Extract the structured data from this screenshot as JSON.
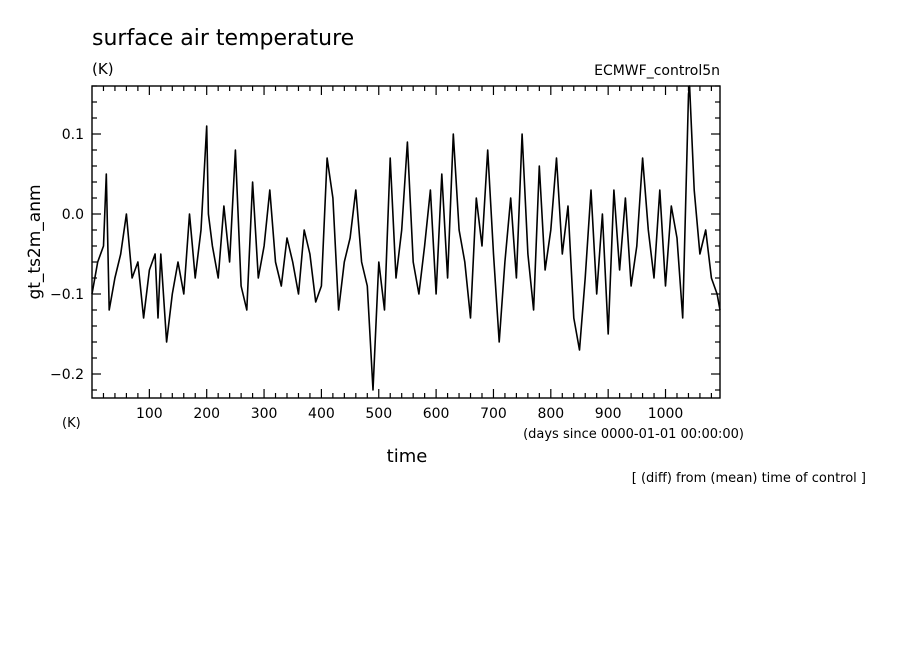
{
  "page": {
    "title": "surface air temperature",
    "title_unit": "(K)",
    "experiment": "ECMWF_control5n",
    "footnote": "[ (diff) from (mean) time of control ]"
  },
  "chart_data": {
    "type": "line",
    "title": "surface air temperature",
    "ylabel": "gt_ts2m_anm",
    "yunit": "(K)",
    "xlabel": "time",
    "xunit": "(days since 0000-01-01 00:00:00)",
    "xlim": [
      0,
      1095
    ],
    "ylim": [
      -0.23,
      0.16
    ],
    "xticks": [
      100,
      200,
      300,
      400,
      500,
      600,
      700,
      800,
      900,
      1000
    ],
    "yticks": [
      -0.2,
      -0.1,
      0.0,
      0.1
    ],
    "ytick_labels": [
      "−0.2",
      "−0.1",
      "0.0",
      "0.1"
    ],
    "grid": false,
    "line_color": "#000000",
    "series": [
      {
        "x": [
          0,
          10,
          20,
          25,
          30,
          40,
          50,
          60,
          70,
          80,
          90,
          100,
          110,
          115,
          120,
          130,
          140,
          150,
          160,
          170,
          175,
          180,
          190,
          200,
          203,
          210,
          220,
          230,
          240,
          250,
          260,
          270,
          280,
          290,
          300,
          310,
          320,
          330,
          340,
          350,
          360,
          370,
          380,
          390,
          400,
          410,
          420,
          430,
          440,
          450,
          460,
          470,
          480,
          490,
          500,
          510,
          520,
          530,
          540,
          550,
          560,
          570,
          580,
          590,
          600,
          610,
          620,
          630,
          640,
          650,
          660,
          670,
          680,
          690,
          700,
          710,
          720,
          730,
          740,
          750,
          760,
          770,
          780,
          790,
          800,
          810,
          820,
          830,
          840,
          850,
          860,
          870,
          880,
          890,
          900,
          910,
          920,
          930,
          940,
          950,
          960,
          970,
          980,
          990,
          1000,
          1010,
          1020,
          1030,
          1040,
          1042,
          1050,
          1060,
          1070,
          1080,
          1090,
          1095
        ],
        "y": [
          -0.1,
          -0.06,
          -0.04,
          0.05,
          -0.12,
          -0.08,
          -0.05,
          0.0,
          -0.08,
          -0.06,
          -0.13,
          -0.07,
          -0.05,
          -0.13,
          -0.05,
          -0.16,
          -0.1,
          -0.06,
          -0.1,
          0.0,
          -0.04,
          -0.08,
          -0.02,
          0.11,
          0.0,
          -0.04,
          -0.08,
          0.01,
          -0.06,
          0.08,
          -0.09,
          -0.12,
          0.04,
          -0.08,
          -0.04,
          0.03,
          -0.06,
          -0.09,
          -0.03,
          -0.06,
          -0.1,
          -0.02,
          -0.05,
          -0.11,
          -0.09,
          0.07,
          0.02,
          -0.12,
          -0.06,
          -0.03,
          0.03,
          -0.06,
          -0.09,
          -0.22,
          -0.06,
          -0.12,
          0.07,
          -0.08,
          -0.02,
          0.09,
          -0.06,
          -0.1,
          -0.04,
          0.03,
          -0.1,
          0.05,
          -0.08,
          0.1,
          -0.02,
          -0.06,
          -0.13,
          0.02,
          -0.04,
          0.08,
          -0.05,
          -0.16,
          -0.06,
          0.02,
          -0.08,
          0.1,
          -0.05,
          -0.12,
          0.06,
          -0.07,
          -0.02,
          0.07,
          -0.05,
          0.01,
          -0.13,
          -0.17,
          -0.08,
          0.03,
          -0.1,
          0.0,
          -0.15,
          0.03,
          -0.07,
          0.02,
          -0.09,
          -0.04,
          0.07,
          -0.02,
          -0.08,
          0.03,
          -0.09,
          0.01,
          -0.03,
          -0.13,
          0.15,
          0.16,
          0.03,
          -0.05,
          -0.02,
          -0.08,
          -0.1,
          -0.12
        ]
      }
    ]
  }
}
